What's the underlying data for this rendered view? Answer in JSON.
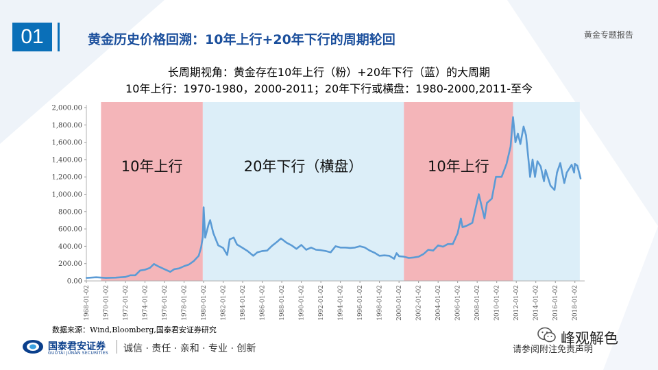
{
  "slide": {
    "number": "01",
    "title": "黄金历史价格回溯：10年上行+20年下行的周期轮回",
    "report_tag": "黄金专题报告"
  },
  "colors": {
    "accent": "#0a6fb8",
    "up_band": "#f4b5b9",
    "down_band": "#dceef8",
    "line": "#5b9bd5"
  },
  "chart_data": {
    "type": "line",
    "title_lines": [
      "长周期视角：黄金存在10年上行（粉）+20年下行（蓝）的大周期",
      "10年上行：1970-1980，2000-2011；20年下行或横盘：1980-2000,2011-至今"
    ],
    "xlabel": "",
    "ylabel": "",
    "ylim": [
      0,
      2000
    ],
    "xlim": [
      1968.0,
      2019.0
    ],
    "y_ticks": [
      "0.00",
      "200.00",
      "400.00",
      "600.00",
      "800.00",
      "1,000.00",
      "1,200.00",
      "1,400.00",
      "1,600.00",
      "1,800.00",
      "2,000.00"
    ],
    "x_ticks": [
      "1968-01-02",
      "1970-01-02",
      "1972-01-02",
      "1974-01-02",
      "1976-01-02",
      "1978-01-02",
      "1980-01-02",
      "1982-01-02",
      "1984-01-02",
      "1986-01-02",
      "1988-01-02",
      "1990-01-02",
      "1992-01-02",
      "1994-01-02",
      "1996-01-02",
      "1998-01-02",
      "2000-01-02",
      "2002-01-02",
      "2004-01-02",
      "2006-01-02",
      "2008-01-02",
      "2010-01-02",
      "2012-01-02",
      "2014-01-02",
      "2016-01-02",
      "2018-01-02"
    ],
    "bands": [
      {
        "label": "10年上行",
        "start": "1969-07",
        "end": "1979-12",
        "kind": "up"
      },
      {
        "label": "20年下行（横盘）",
        "start": "1979-12",
        "end": "2000-07",
        "kind": "down"
      },
      {
        "label": "10年上行",
        "start": "2000-07",
        "end": "2011-09",
        "kind": "up"
      },
      {
        "label": "",
        "start": "2011-09",
        "end": "2018-07",
        "kind": "down"
      }
    ],
    "series": [
      {
        "name": "",
        "points": [
          [
            "1968-01",
            35
          ],
          [
            "1969-01",
            42
          ],
          [
            "1970-01",
            35
          ],
          [
            "1971-01",
            38
          ],
          [
            "1972-01",
            46
          ],
          [
            "1972-07",
            65
          ],
          [
            "1973-01",
            65
          ],
          [
            "1973-07",
            120
          ],
          [
            "1974-01",
            130
          ],
          [
            "1974-07",
            150
          ],
          [
            "1974-12",
            195
          ],
          [
            "1975-06",
            165
          ],
          [
            "1976-01",
            135
          ],
          [
            "1976-08",
            105
          ],
          [
            "1977-01",
            135
          ],
          [
            "1977-07",
            145
          ],
          [
            "1978-01",
            170
          ],
          [
            "1978-07",
            190
          ],
          [
            "1979-01",
            230
          ],
          [
            "1979-07",
            290
          ],
          [
            "1979-10",
            390
          ],
          [
            "1979-12",
            510
          ],
          [
            "1980-01",
            850
          ],
          [
            "1980-03",
            500
          ],
          [
            "1980-07",
            650
          ],
          [
            "1980-09",
            700
          ],
          [
            "1981-01",
            550
          ],
          [
            "1981-07",
            410
          ],
          [
            "1982-01",
            380
          ],
          [
            "1982-06",
            300
          ],
          [
            "1982-09",
            480
          ],
          [
            "1983-02",
            500
          ],
          [
            "1983-06",
            420
          ],
          [
            "1984-01",
            380
          ],
          [
            "1984-07",
            345
          ],
          [
            "1985-02",
            290
          ],
          [
            "1985-07",
            330
          ],
          [
            "1986-01",
            345
          ],
          [
            "1986-07",
            350
          ],
          [
            "1987-01",
            405
          ],
          [
            "1987-07",
            450
          ],
          [
            "1987-12",
            490
          ],
          [
            "1988-07",
            440
          ],
          [
            "1989-01",
            410
          ],
          [
            "1989-07",
            370
          ],
          [
            "1990-01",
            415
          ],
          [
            "1990-07",
            360
          ],
          [
            "1991-01",
            385
          ],
          [
            "1991-07",
            360
          ],
          [
            "1992-01",
            355
          ],
          [
            "1992-07",
            345
          ],
          [
            "1993-01",
            330
          ],
          [
            "1993-07",
            400
          ],
          [
            "1994-01",
            385
          ],
          [
            "1994-07",
            385
          ],
          [
            "1995-01",
            380
          ],
          [
            "1995-07",
            385
          ],
          [
            "1996-01",
            400
          ],
          [
            "1996-07",
            385
          ],
          [
            "1997-01",
            350
          ],
          [
            "1997-07",
            325
          ],
          [
            "1998-01",
            290
          ],
          [
            "1998-07",
            295
          ],
          [
            "1999-01",
            290
          ],
          [
            "1999-07",
            255
          ],
          [
            "1999-10",
            320
          ],
          [
            "2000-01",
            285
          ],
          [
            "2000-07",
            280
          ],
          [
            "2001-01",
            265
          ],
          [
            "2001-07",
            270
          ],
          [
            "2002-01",
            280
          ],
          [
            "2002-07",
            310
          ],
          [
            "2003-01",
            360
          ],
          [
            "2003-07",
            350
          ],
          [
            "2004-01",
            410
          ],
          [
            "2004-07",
            395
          ],
          [
            "2005-01",
            425
          ],
          [
            "2005-07",
            425
          ],
          [
            "2006-01",
            550
          ],
          [
            "2006-05",
            720
          ],
          [
            "2006-07",
            620
          ],
          [
            "2007-01",
            640
          ],
          [
            "2007-07",
            670
          ],
          [
            "2008-01",
            920
          ],
          [
            "2008-03",
            1000
          ],
          [
            "2008-10",
            720
          ],
          [
            "2009-01",
            900
          ],
          [
            "2009-07",
            950
          ],
          [
            "2009-12",
            1200
          ],
          [
            "2010-07",
            1200
          ],
          [
            "2011-01",
            1350
          ],
          [
            "2011-06",
            1550
          ],
          [
            "2011-09",
            1890
          ],
          [
            "2011-12",
            1600
          ],
          [
            "2012-03",
            1700
          ],
          [
            "2012-06",
            1580
          ],
          [
            "2012-10",
            1780
          ],
          [
            "2013-01",
            1680
          ],
          [
            "2013-04",
            1400
          ],
          [
            "2013-06",
            1200
          ],
          [
            "2013-09",
            1400
          ],
          [
            "2013-12",
            1200
          ],
          [
            "2014-03",
            1380
          ],
          [
            "2014-07",
            1320
          ],
          [
            "2014-11",
            1150
          ],
          [
            "2015-01",
            1280
          ],
          [
            "2015-07",
            1100
          ],
          [
            "2015-12",
            1050
          ],
          [
            "2016-03",
            1250
          ],
          [
            "2016-07",
            1360
          ],
          [
            "2016-12",
            1130
          ],
          [
            "2017-03",
            1250
          ],
          [
            "2017-09",
            1340
          ],
          [
            "2017-12",
            1250
          ],
          [
            "2018-01",
            1350
          ],
          [
            "2018-04",
            1330
          ],
          [
            "2018-07",
            1220
          ],
          [
            "2018-08",
            1180
          ]
        ]
      }
    ]
  },
  "footer": {
    "source": "数据来源：Wind,Bloomberg,国泰君安证券研究",
    "logo_cn": "国泰君安证券",
    "logo_en": "GUOTAI JUNAN SECURITIES",
    "motto": "诚信 · 责任 · 亲和 · 专业 · 创新",
    "disclaimer": "请参阅附注免责声明",
    "watermark": "峰观解色",
    "watermark_icon": "wechat-icon"
  }
}
